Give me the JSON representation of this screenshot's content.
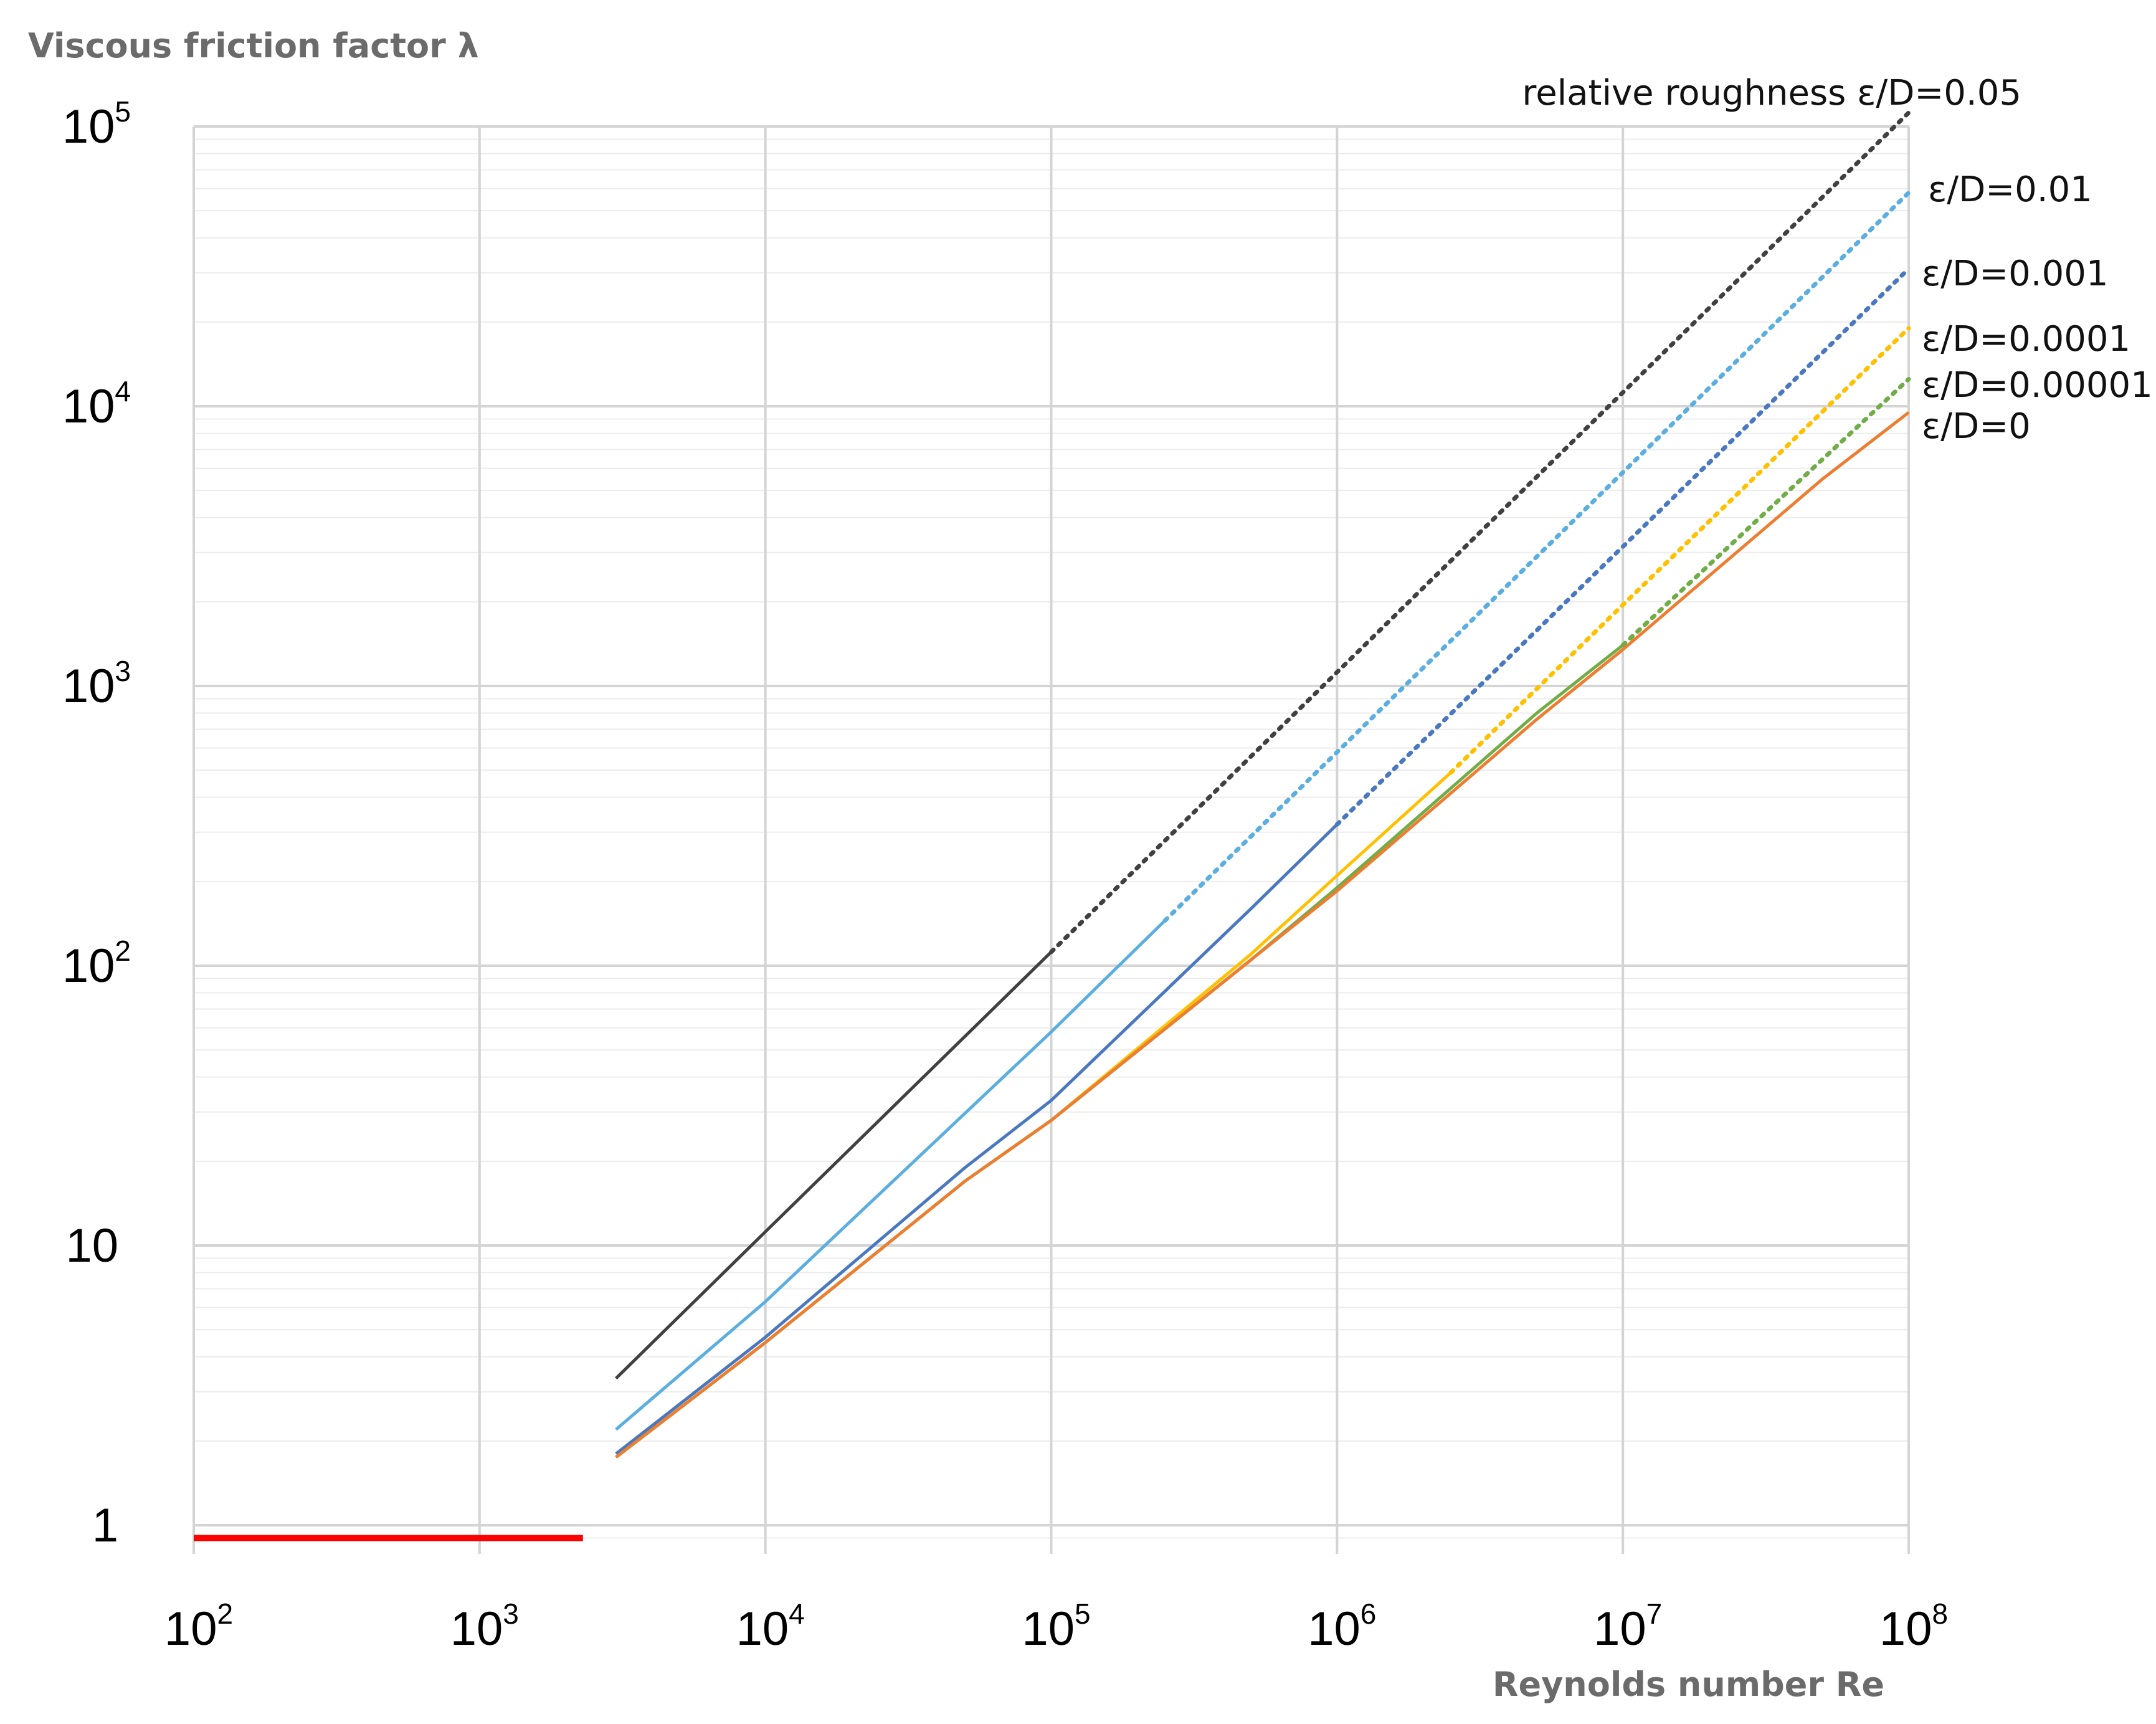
{
  "chart_data": {
    "type": "line",
    "title": "Viscous friction factor λ",
    "xlabel": "Reynolds number Re",
    "ylabel": "",
    "xscale": "log",
    "yscale": "log",
    "xlim": [
      100,
      100000000
    ],
    "ylim": [
      0.9,
      100000
    ],
    "grid": true,
    "x_ticks": [
      {
        "base": "10",
        "exp": "2"
      },
      {
        "base": "10",
        "exp": "3"
      },
      {
        "base": "10",
        "exp": "4"
      },
      {
        "base": "10",
        "exp": "5"
      },
      {
        "base": "10",
        "exp": "6"
      },
      {
        "base": "10",
        "exp": "7"
      },
      {
        "base": "10",
        "exp": "8"
      }
    ],
    "y_ticks": [
      {
        "value": 1,
        "base": "1",
        "exp": ""
      },
      {
        "value": 10,
        "base": "10",
        "exp": ""
      },
      {
        "value": 100,
        "base": "10",
        "exp": "2"
      },
      {
        "value": 1000,
        "base": "10",
        "exp": "3"
      },
      {
        "value": 10000,
        "base": "10",
        "exp": "4"
      },
      {
        "value": 100000,
        "base": "10",
        "exp": "5"
      }
    ],
    "laminar": {
      "color": "#ff0000",
      "x": [
        100,
        2300
      ],
      "y": [
        0.9,
        0.9
      ]
    },
    "series": [
      {
        "name": "relative roughness ε/D=0.05",
        "color": "#404040",
        "solid": {
          "x": [
            3000,
            10000,
            100000
          ],
          "y": [
            3.35,
            11.2,
            112
          ]
        },
        "dotted": {
          "x": [
            100000,
            1000000,
            10000000,
            100000000
          ],
          "y": [
            112,
            1120,
            11200,
            112000
          ]
        }
      },
      {
        "name": "ε/D=0.01",
        "color": "#5baee0",
        "solid": {
          "x": [
            3000,
            10000,
            100000,
            250000
          ],
          "y": [
            2.2,
            6.3,
            58,
            145
          ]
        },
        "dotted": {
          "x": [
            250000,
            1000000,
            10000000,
            100000000
          ],
          "y": [
            145,
            580,
            5800,
            58000
          ]
        }
      },
      {
        "name": "ε/D=0.001",
        "color": "#4a78c0",
        "solid": {
          "x": [
            3000,
            10000,
            50000,
            100000,
            500000,
            1000000
          ],
          "y": [
            1.8,
            4.7,
            19,
            33,
            160,
            320
          ]
        },
        "dotted": {
          "x": [
            1000000,
            10000000,
            100000000
          ],
          "y": [
            320,
            3150,
            31000
          ]
        }
      },
      {
        "name": "ε/D=0.0001",
        "color": "#ffc000",
        "solid": {
          "x": [
            3000,
            10000,
            50000,
            100000,
            500000,
            1000000,
            2500000
          ],
          "y": [
            1.75,
            4.5,
            17,
            28,
            110,
            210,
            490
          ]
        },
        "dotted": {
          "x": [
            2500000,
            10000000,
            100000000
          ],
          "y": [
            490,
            1950,
            19000
          ]
        }
      },
      {
        "name": "ε/D=0.00001",
        "color": "#70ad47",
        "solid": {
          "x": [
            3000,
            10000,
            50000,
            100000,
            500000,
            1000000,
            5000000,
            10000000
          ],
          "y": [
            1.75,
            4.5,
            17,
            28,
            105,
            190,
            800,
            1400
          ]
        },
        "dotted": {
          "x": [
            10000000,
            100000000
          ],
          "y": [
            1400,
            12500
          ]
        }
      },
      {
        "name": "ε/D=0",
        "color": "#ed7d31",
        "solid": {
          "x": [
            3000,
            10000,
            50000,
            100000,
            500000,
            1000000,
            5000000,
            10000000,
            50000000,
            100000000
          ],
          "y": [
            1.75,
            4.5,
            17,
            28,
            105,
            185,
            760,
            1350,
            5500,
            9500
          ]
        },
        "dotted": null
      }
    ]
  }
}
